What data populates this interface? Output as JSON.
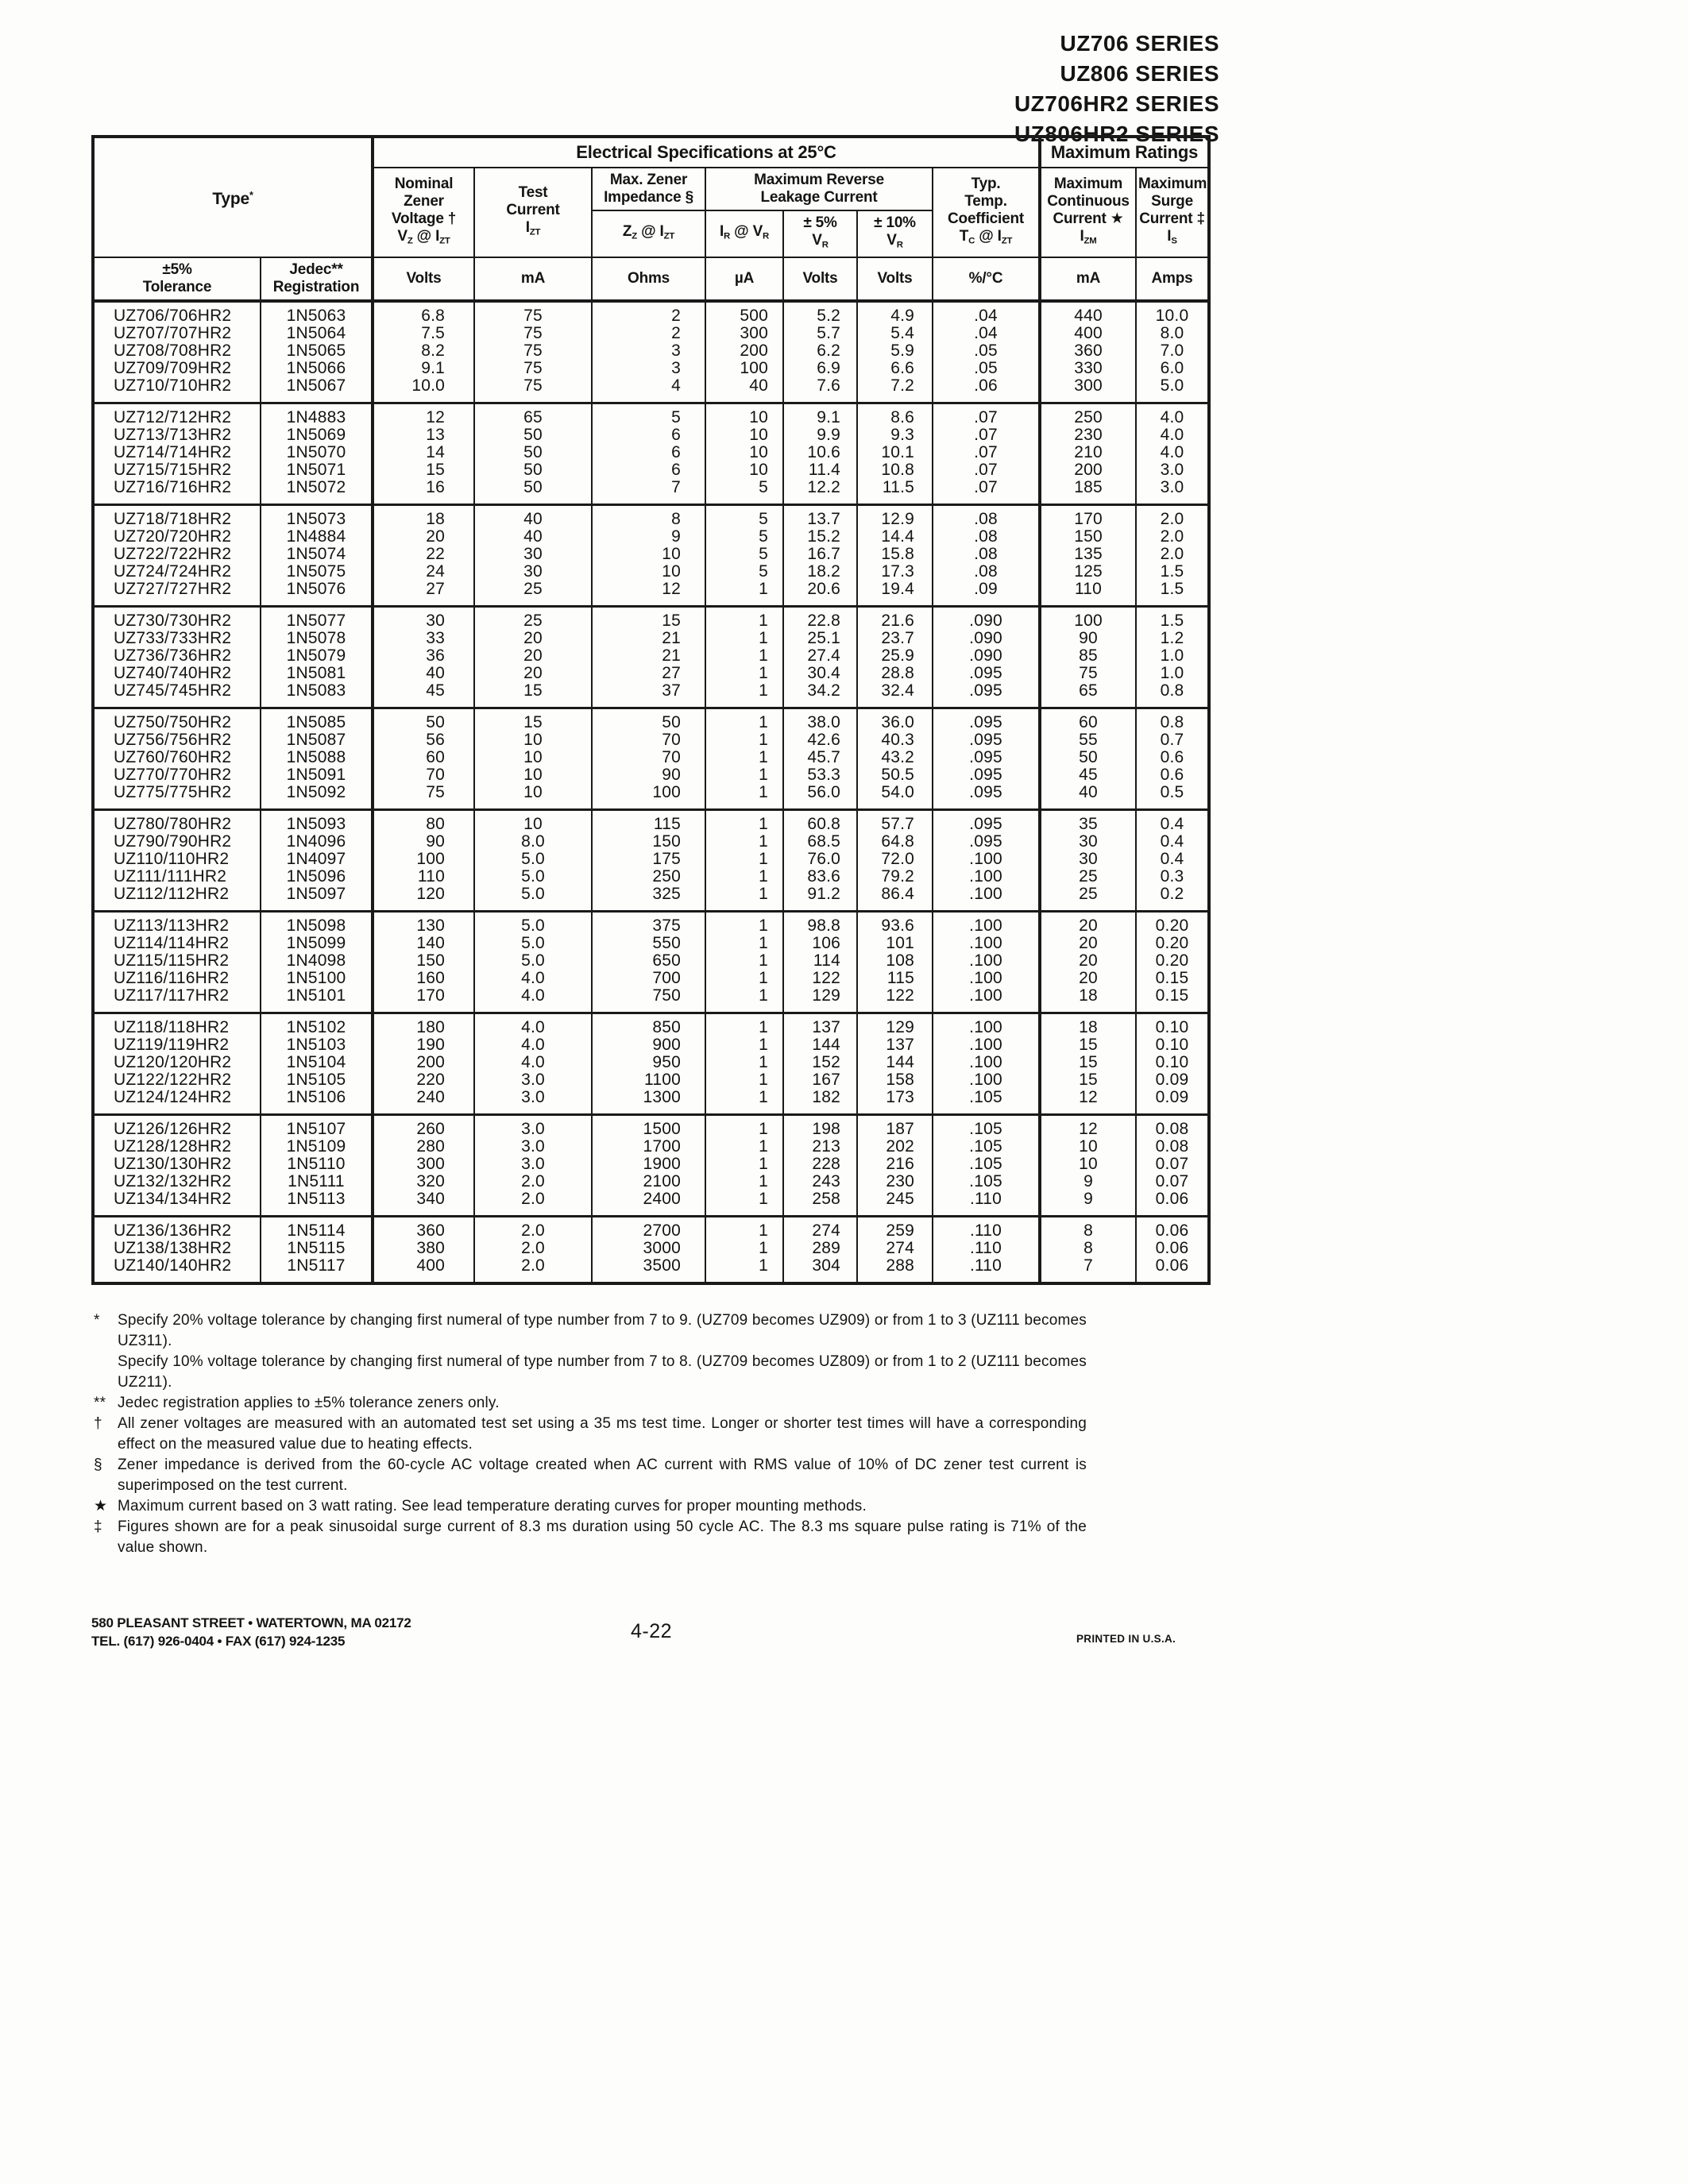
{
  "page": {
    "series_titles": [
      "UZ706 SERIES",
      "UZ806 SERIES",
      "UZ706HR2 SERIES",
      "UZ806HR2 SERIES"
    ],
    "page_number": "4-22",
    "footer_address_line1": "580 PLEASANT STREET • WATERTOWN, MA 02172",
    "footer_address_line2": "TEL. (617) 926-0404 • FAX (617) 924-1235",
    "printed_note": "PRINTED IN U.S.A."
  },
  "table": {
    "section_electrical": "Electrical Specifications at 25°C",
    "section_ratings": "Maximum Ratings",
    "type_header_html": "Type<sup>*</sup>",
    "col_keys": [
      "type",
      "jedec",
      "nominal-volts",
      "test-ma",
      "impedance-ohms",
      "leakage-ua",
      "vr-5pct",
      "vr-10pct",
      "temp-coeff",
      "izm-ma",
      "surge-amps"
    ],
    "headers_html": {
      "nominal": "Nominal<br>Zener<br>Voltage †<br>V<sub>Z</sub> @ I<sub>ZT</sub>",
      "test": "Test<br>Current<br>I<sub>ZT</sub>",
      "impedance_group": "Max. Zener<br>Impedance §",
      "impedance_symbol": "Z<sub>Z</sub> @ I<sub>ZT</sub>",
      "leakage_group": "Maximum Reverse<br>Leakage Current",
      "leakage_symbol": "I<sub>R</sub> @ V<sub>R</sub>",
      "vr5": "± 5%<br>V<sub>R</sub>",
      "vr10": "± 10%<br>V<sub>R</sub>",
      "temp_coeff": "Typ.<br>Temp.<br>Coefficient<br>T<sub>C</sub> @ I<sub>ZT</sub>",
      "continuous": "Maximum<br>Continuous<br>Current ★<br>I<sub>ZM</sub>",
      "surge": "Maximum<br>Surge<br>Current ‡<br>I<sub>S</sub>",
      "tolerance5": "±5%<br>Tolerance",
      "jedec": "Jedec**<br>Registration"
    },
    "units": [
      "Volts",
      "mA",
      "Ohms",
      "µA",
      "Volts",
      "Volts",
      "%/°C",
      "mA",
      "Amps"
    ],
    "groups": [
      {
        "rows": [
          [
            "UZ706/706HR2",
            "1N5063",
            "6.8",
            "75",
            "2",
            "500",
            "5.2",
            "4.9",
            ".04",
            "440",
            "10.0"
          ],
          [
            "UZ707/707HR2",
            "1N5064",
            "7.5",
            "75",
            "2",
            "300",
            "5.7",
            "5.4",
            ".04",
            "400",
            "8.0"
          ],
          [
            "UZ708/708HR2",
            "1N5065",
            "8.2",
            "75",
            "3",
            "200",
            "6.2",
            "5.9",
            ".05",
            "360",
            "7.0"
          ],
          [
            "UZ709/709HR2",
            "1N5066",
            "9.1",
            "75",
            "3",
            "100",
            "6.9",
            "6.6",
            ".05",
            "330",
            "6.0"
          ],
          [
            "UZ710/710HR2",
            "1N5067",
            "10.0",
            "75",
            "4",
            "40",
            "7.6",
            "7.2",
            ".06",
            "300",
            "5.0"
          ]
        ]
      },
      {
        "rows": [
          [
            "UZ712/712HR2",
            "1N4883",
            "12",
            "65",
            "5",
            "10",
            "9.1",
            "8.6",
            ".07",
            "250",
            "4.0"
          ],
          [
            "UZ713/713HR2",
            "1N5069",
            "13",
            "50",
            "6",
            "10",
            "9.9",
            "9.3",
            ".07",
            "230",
            "4.0"
          ],
          [
            "UZ714/714HR2",
            "1N5070",
            "14",
            "50",
            "6",
            "10",
            "10.6",
            "10.1",
            ".07",
            "210",
            "4.0"
          ],
          [
            "UZ715/715HR2",
            "1N5071",
            "15",
            "50",
            "6",
            "10",
            "11.4",
            "10.8",
            ".07",
            "200",
            "3.0"
          ],
          [
            "UZ716/716HR2",
            "1N5072",
            "16",
            "50",
            "7",
            "5",
            "12.2",
            "11.5",
            ".07",
            "185",
            "3.0"
          ]
        ]
      },
      {
        "rows": [
          [
            "UZ718/718HR2",
            "1N5073",
            "18",
            "40",
            "8",
            "5",
            "13.7",
            "12.9",
            ".08",
            "170",
            "2.0"
          ],
          [
            "UZ720/720HR2",
            "1N4884",
            "20",
            "40",
            "9",
            "5",
            "15.2",
            "14.4",
            ".08",
            "150",
            "2.0"
          ],
          [
            "UZ722/722HR2",
            "1N5074",
            "22",
            "30",
            "10",
            "5",
            "16.7",
            "15.8",
            ".08",
            "135",
            "2.0"
          ],
          [
            "UZ724/724HR2",
            "1N5075",
            "24",
            "30",
            "10",
            "5",
            "18.2",
            "17.3",
            ".08",
            "125",
            "1.5"
          ],
          [
            "UZ727/727HR2",
            "1N5076",
            "27",
            "25",
            "12",
            "1",
            "20.6",
            "19.4",
            ".09",
            "110",
            "1.5"
          ]
        ]
      },
      {
        "rows": [
          [
            "UZ730/730HR2",
            "1N5077",
            "30",
            "25",
            "15",
            "1",
            "22.8",
            "21.6",
            ".090",
            "100",
            "1.5"
          ],
          [
            "UZ733/733HR2",
            "1N5078",
            "33",
            "20",
            "21",
            "1",
            "25.1",
            "23.7",
            ".090",
            "90",
            "1.2"
          ],
          [
            "UZ736/736HR2",
            "1N5079",
            "36",
            "20",
            "21",
            "1",
            "27.4",
            "25.9",
            ".090",
            "85",
            "1.0"
          ],
          [
            "UZ740/740HR2",
            "1N5081",
            "40",
            "20",
            "27",
            "1",
            "30.4",
            "28.8",
            ".095",
            "75",
            "1.0"
          ],
          [
            "UZ745/745HR2",
            "1N5083",
            "45",
            "15",
            "37",
            "1",
            "34.2",
            "32.4",
            ".095",
            "65",
            "0.8"
          ]
        ]
      },
      {
        "rows": [
          [
            "UZ750/750HR2",
            "1N5085",
            "50",
            "15",
            "50",
            "1",
            "38.0",
            "36.0",
            ".095",
            "60",
            "0.8"
          ],
          [
            "UZ756/756HR2",
            "1N5087",
            "56",
            "10",
            "70",
            "1",
            "42.6",
            "40.3",
            ".095",
            "55",
            "0.7"
          ],
          [
            "UZ760/760HR2",
            "1N5088",
            "60",
            "10",
            "70",
            "1",
            "45.7",
            "43.2",
            ".095",
            "50",
            "0.6"
          ],
          [
            "UZ770/770HR2",
            "1N5091",
            "70",
            "10",
            "90",
            "1",
            "53.3",
            "50.5",
            ".095",
            "45",
            "0.6"
          ],
          [
            "UZ775/775HR2",
            "1N5092",
            "75",
            "10",
            "100",
            "1",
            "56.0",
            "54.0",
            ".095",
            "40",
            "0.5"
          ]
        ]
      },
      {
        "rows": [
          [
            "UZ780/780HR2",
            "1N5093",
            "80",
            "10",
            "115",
            "1",
            "60.8",
            "57.7",
            ".095",
            "35",
            "0.4"
          ],
          [
            "UZ790/790HR2",
            "1N4096",
            "90",
            "8.0",
            "150",
            "1",
            "68.5",
            "64.8",
            ".095",
            "30",
            "0.4"
          ],
          [
            "UZ110/110HR2",
            "1N4097",
            "100",
            "5.0",
            "175",
            "1",
            "76.0",
            "72.0",
            ".100",
            "30",
            "0.4"
          ],
          [
            "UZ111/111HR2",
            "1N5096",
            "110",
            "5.0",
            "250",
            "1",
            "83.6",
            "79.2",
            ".100",
            "25",
            "0.3"
          ],
          [
            "UZ112/112HR2",
            "1N5097",
            "120",
            "5.0",
            "325",
            "1",
            "91.2",
            "86.4",
            ".100",
            "25",
            "0.2"
          ]
        ]
      },
      {
        "rows": [
          [
            "UZ113/113HR2",
            "1N5098",
            "130",
            "5.0",
            "375",
            "1",
            "98.8",
            "93.6",
            ".100",
            "20",
            "0.20"
          ],
          [
            "UZ114/114HR2",
            "1N5099",
            "140",
            "5.0",
            "550",
            "1",
            "106",
            "101",
            ".100",
            "20",
            "0.20"
          ],
          [
            "UZ115/115HR2",
            "1N4098",
            "150",
            "5.0",
            "650",
            "1",
            "114",
            "108",
            ".100",
            "20",
            "0.20"
          ],
          [
            "UZ116/116HR2",
            "1N5100",
            "160",
            "4.0",
            "700",
            "1",
            "122",
            "115",
            ".100",
            "20",
            "0.15"
          ],
          [
            "UZ117/117HR2",
            "1N5101",
            "170",
            "4.0",
            "750",
            "1",
            "129",
            "122",
            ".100",
            "18",
            "0.15"
          ]
        ]
      },
      {
        "rows": [
          [
            "UZ118/118HR2",
            "1N5102",
            "180",
            "4.0",
            "850",
            "1",
            "137",
            "129",
            ".100",
            "18",
            "0.10"
          ],
          [
            "UZ119/119HR2",
            "1N5103",
            "190",
            "4.0",
            "900",
            "1",
            "144",
            "137",
            ".100",
            "15",
            "0.10"
          ],
          [
            "UZ120/120HR2",
            "1N5104",
            "200",
            "4.0",
            "950",
            "1",
            "152",
            "144",
            ".100",
            "15",
            "0.10"
          ],
          [
            "UZ122/122HR2",
            "1N5105",
            "220",
            "3.0",
            "1100",
            "1",
            "167",
            "158",
            ".100",
            "15",
            "0.09"
          ],
          [
            "UZ124/124HR2",
            "1N5106",
            "240",
            "3.0",
            "1300",
            "1",
            "182",
            "173",
            ".105",
            "12",
            "0.09"
          ]
        ]
      },
      {
        "rows": [
          [
            "UZ126/126HR2",
            "1N5107",
            "260",
            "3.0",
            "1500",
            "1",
            "198",
            "187",
            ".105",
            "12",
            "0.08"
          ],
          [
            "UZ128/128HR2",
            "1N5109",
            "280",
            "3.0",
            "1700",
            "1",
            "213",
            "202",
            ".105",
            "10",
            "0.08"
          ],
          [
            "UZ130/130HR2",
            "1N5110",
            "300",
            "3.0",
            "1900",
            "1",
            "228",
            "216",
            ".105",
            "10",
            "0.07"
          ],
          [
            "UZ132/132HR2",
            "1N5111",
            "320",
            "2.0",
            "2100",
            "1",
            "243",
            "230",
            ".105",
            "9",
            "0.07"
          ],
          [
            "UZ134/134HR2",
            "1N5113",
            "340",
            "2.0",
            "2400",
            "1",
            "258",
            "245",
            ".110",
            "9",
            "0.06"
          ]
        ]
      },
      {
        "rows": [
          [
            "UZ136/136HR2",
            "1N5114",
            "360",
            "2.0",
            "2700",
            "1",
            "274",
            "259",
            ".110",
            "8",
            "0.06"
          ],
          [
            "UZ138/138HR2",
            "1N5115",
            "380",
            "2.0",
            "3000",
            "1",
            "289",
            "274",
            ".110",
            "8",
            "0.06"
          ],
          [
            "UZ140/140HR2",
            "1N5117",
            "400",
            "2.0",
            "3500",
            "1",
            "304",
            "288",
            ".110",
            "7",
            "0.06"
          ]
        ]
      }
    ]
  },
  "footnotes": [
    {
      "marker": "*",
      "text": "Specify 20% voltage tolerance by changing first numeral of type number from 7 to 9. (UZ709 becomes UZ909) or from 1 to 3 (UZ111 becomes UZ311)."
    },
    {
      "marker": "",
      "text": "Specify 10% voltage tolerance by changing first numeral of type number from 7 to 8. (UZ709 becomes UZ809) or from 1 to 2 (UZ111 becomes UZ211)."
    },
    {
      "marker": "**",
      "text": "Jedec registration applies to ±5% tolerance zeners only."
    },
    {
      "marker": "†",
      "text": "All zener voltages are measured with an automated test set using a 35 ms test time. Longer or shorter test times will have a corresponding effect on the measured value due to heating effects."
    },
    {
      "marker": "§",
      "text": "Zener impedance is derived from the 60-cycle AC voltage created when AC current with RMS value of 10% of DC zener test current is superimposed on the test current."
    },
    {
      "marker": "★",
      "text": "Maximum current based on 3 watt rating. See lead temperature derating curves for proper mounting methods."
    },
    {
      "marker": "‡",
      "text": "Figures shown are for a peak sinusoidal surge current of 8.3 ms duration using 50 cycle AC.  The 8.3 ms square pulse rating is 71% of the value shown."
    }
  ]
}
